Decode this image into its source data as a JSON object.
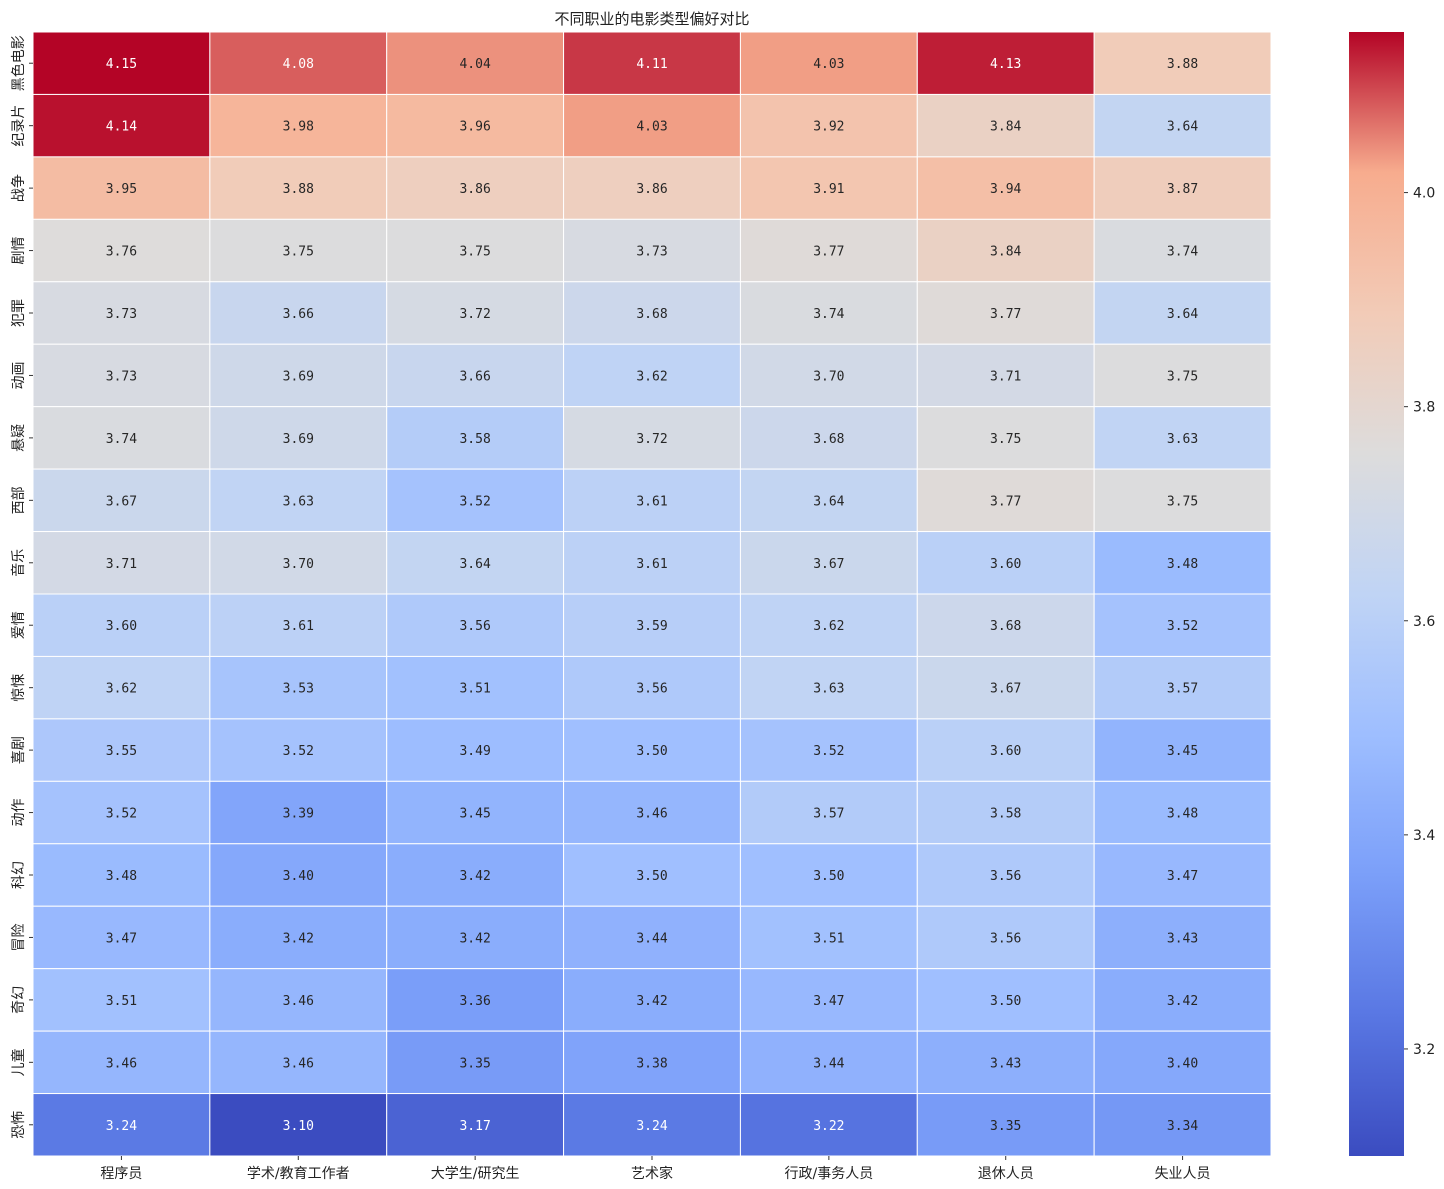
{
  "chart_data": {
    "type": "heatmap",
    "title": "不同职业的电影类型偏好对比",
    "xlabel": "",
    "ylabel": "",
    "columns": [
      "程序员",
      "学术/教育工作者",
      "大学生/研究生",
      "艺术家",
      "行政/事务人员",
      "退休人员",
      "失业人员"
    ],
    "rows": [
      "黑色电影",
      "纪录片",
      "战争",
      "剧情",
      "犯罪",
      "动画",
      "悬疑",
      "西部",
      "音乐",
      "爱情",
      "惊悚",
      "喜剧",
      "动作",
      "科幻",
      "冒险",
      "奇幻",
      "儿童",
      "恐怖"
    ],
    "values": [
      [
        4.15,
        4.08,
        4.04,
        4.11,
        4.03,
        4.13,
        3.88
      ],
      [
        4.14,
        3.98,
        3.96,
        4.03,
        3.92,
        3.84,
        3.64
      ],
      [
        3.95,
        3.88,
        3.86,
        3.86,
        3.91,
        3.94,
        3.87
      ],
      [
        3.76,
        3.75,
        3.75,
        3.73,
        3.77,
        3.84,
        3.74
      ],
      [
        3.73,
        3.66,
        3.72,
        3.68,
        3.74,
        3.77,
        3.64
      ],
      [
        3.73,
        3.69,
        3.66,
        3.62,
        3.7,
        3.71,
        3.75
      ],
      [
        3.74,
        3.69,
        3.58,
        3.72,
        3.68,
        3.75,
        3.63
      ],
      [
        3.67,
        3.63,
        3.52,
        3.61,
        3.64,
        3.77,
        3.75
      ],
      [
        3.71,
        3.7,
        3.64,
        3.61,
        3.67,
        3.6,
        3.48
      ],
      [
        3.6,
        3.61,
        3.56,
        3.59,
        3.62,
        3.68,
        3.52
      ],
      [
        3.62,
        3.53,
        3.51,
        3.56,
        3.63,
        3.67,
        3.57
      ],
      [
        3.55,
        3.52,
        3.49,
        3.5,
        3.52,
        3.6,
        3.45
      ],
      [
        3.52,
        3.39,
        3.45,
        3.46,
        3.57,
        3.58,
        3.48
      ],
      [
        3.48,
        3.4,
        3.42,
        3.5,
        3.5,
        3.56,
        3.47
      ],
      [
        3.47,
        3.42,
        3.42,
        3.44,
        3.51,
        3.56,
        3.43
      ],
      [
        3.51,
        3.46,
        3.36,
        3.42,
        3.47,
        3.5,
        3.42
      ],
      [
        3.46,
        3.46,
        3.35,
        3.38,
        3.44,
        3.43,
        3.4
      ],
      [
        3.24,
        3.1,
        3.17,
        3.24,
        3.22,
        3.35,
        3.34
      ]
    ],
    "value_format": "2 decimals",
    "colormap": "coolwarm",
    "vmin": 3.1,
    "vmax": 4.15,
    "colorbar": {
      "ticks": [
        3.2,
        3.4,
        3.6,
        3.8,
        4.0
      ],
      "tick_labels": [
        "3.2",
        "3.4",
        "3.6",
        "3.8",
        "4.0"
      ],
      "placement": "right"
    },
    "grid": "white cell borders"
  }
}
